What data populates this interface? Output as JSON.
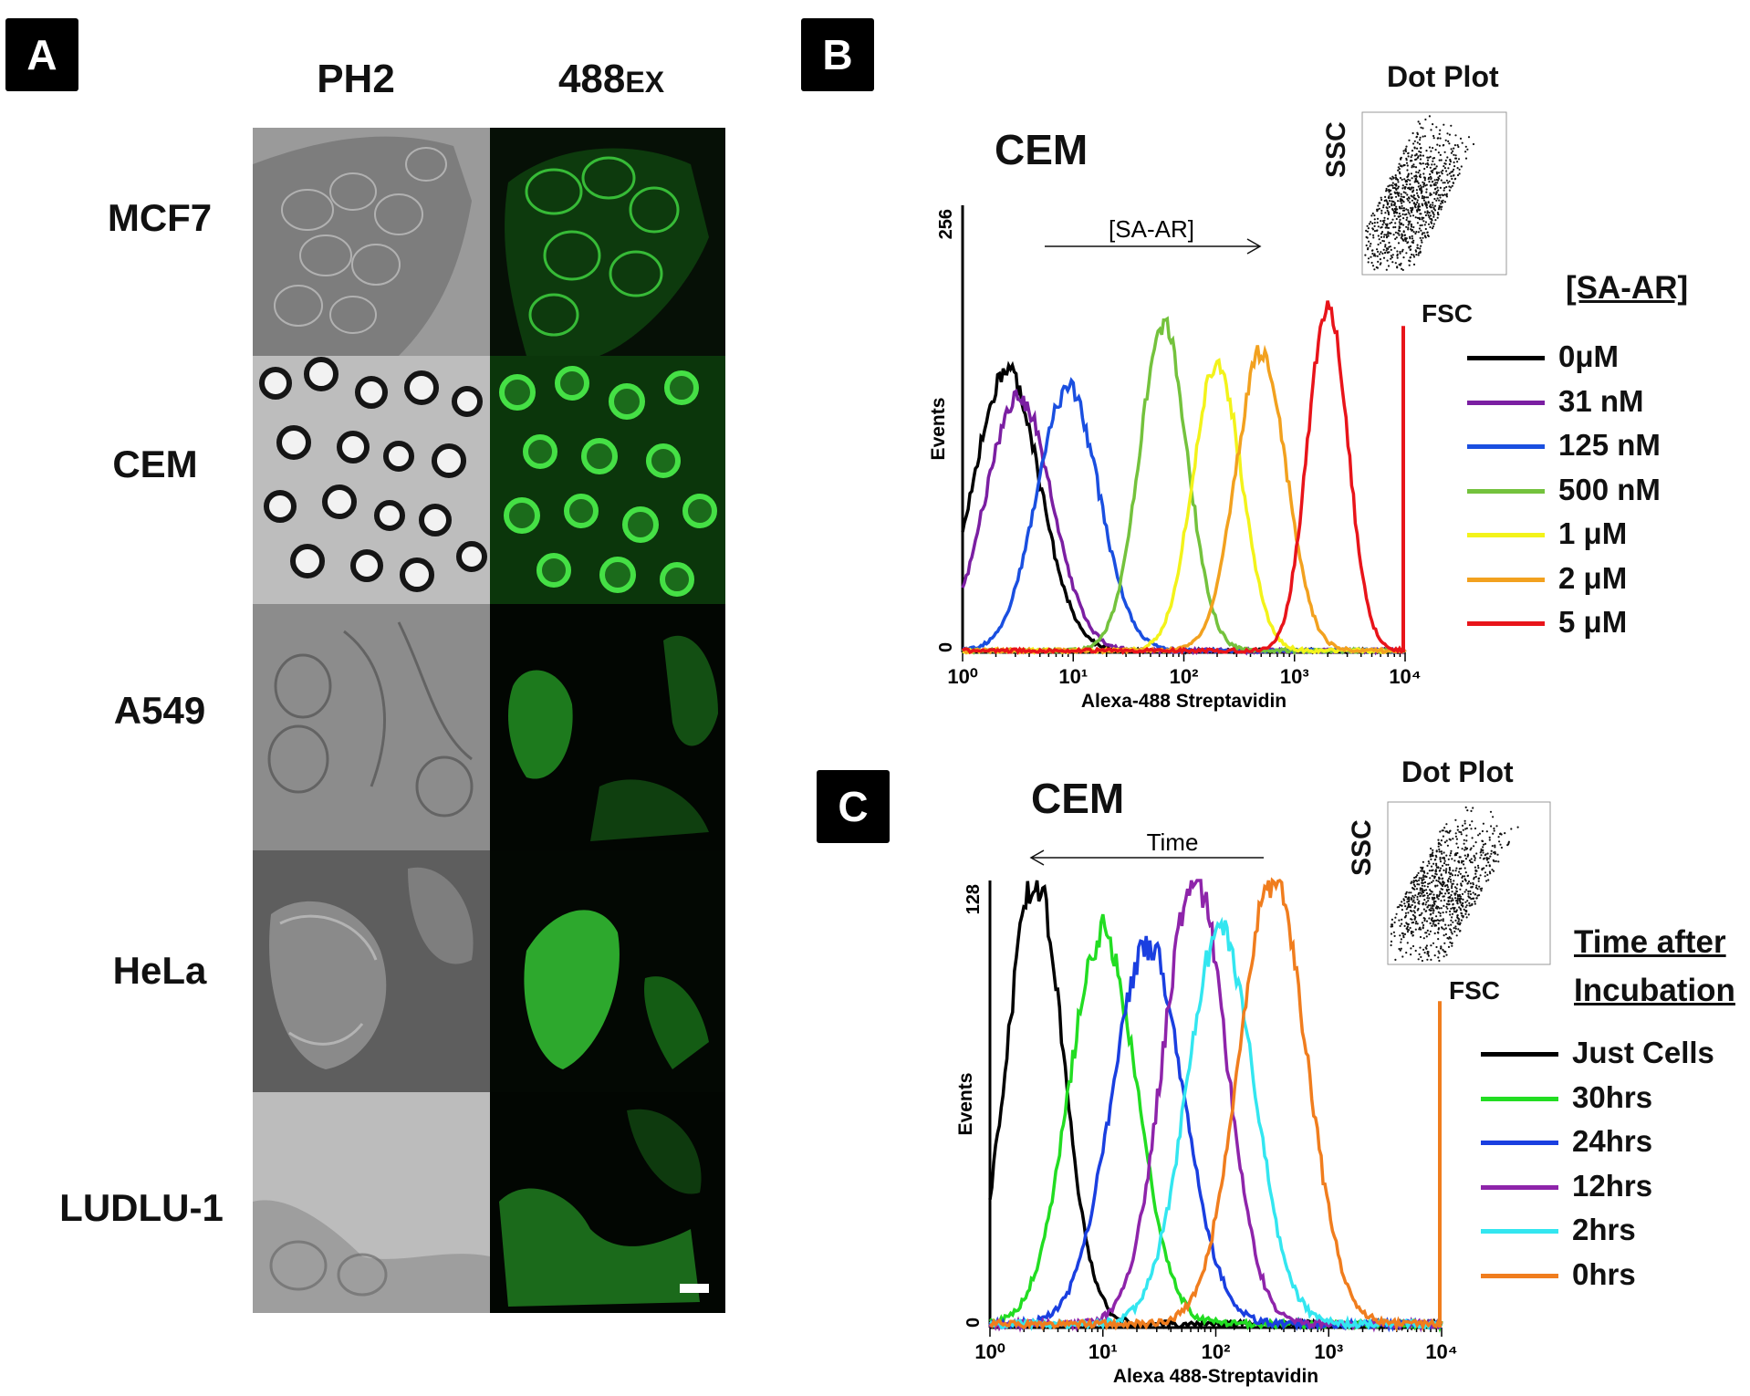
{
  "panelA": {
    "label": "A",
    "columns": [
      "PH2",
      "488",
      "EX"
    ],
    "rows": [
      "MCF7",
      "CEM",
      "A549",
      "HeLa",
      "LUDLU-1"
    ]
  },
  "panelB": {
    "label": "B",
    "title": "CEM",
    "arrow_label": "[SA-AR]",
    "dotplot": {
      "title": "Dot Plot",
      "ylabel": "SSC",
      "xlabel": "FSC"
    },
    "legend_title": "[SA-AR]",
    "legend": [
      {
        "label": "0μM",
        "color": "#000000"
      },
      {
        "label": "31 nM",
        "color": "#7b1fa2"
      },
      {
        "label": "125 nM",
        "color": "#1a4fe0"
      },
      {
        "label": "500 nM",
        "color": "#74c23d"
      },
      {
        "label": "1 μM",
        "color": "#f3f31a"
      },
      {
        "label": "2 μM",
        "color": "#f2a11f"
      },
      {
        "label": "5 μM",
        "color": "#e8141a"
      }
    ],
    "ylabel": "Events",
    "xlabel": "Alexa-488 Streptavidin",
    "y_max_label": "256",
    "y_zero_label": "0",
    "xticks": [
      "10⁰",
      "10¹",
      "10²",
      "10³",
      "10⁴"
    ]
  },
  "panelC": {
    "label": "C",
    "title": "CEM",
    "arrow_label": "Time",
    "dotplot": {
      "title": "Dot Plot",
      "ylabel": "SSC",
      "xlabel": "FSC"
    },
    "legend_title_line1": "Time after",
    "legend_title_line2": "Incubation",
    "legend": [
      {
        "label": "Just Cells",
        "color": "#000000"
      },
      {
        "label": "30hrs",
        "color": "#22dd22"
      },
      {
        "label": "24hrs",
        "color": "#1a3fe0"
      },
      {
        "label": "12hrs",
        "color": "#8e24aa"
      },
      {
        "label": "2hrs",
        "color": "#33e6f0"
      },
      {
        "label": "0hrs",
        "color": "#f07d1e"
      }
    ],
    "ylabel": "Events",
    "xlabel": "Alexa 488-Streptavidin",
    "y_max_label": "128",
    "y_zero_label": "0",
    "xticks": [
      "10⁰",
      "10¹",
      "10²",
      "10³",
      "10⁴"
    ]
  },
  "chart_data": [
    {
      "type": "line",
      "title": "CEM",
      "xlabel": "Alexa-488 Streptavidin",
      "ylabel": "Events",
      "x_scale": "log",
      "xlim": [
        1,
        10000
      ],
      "ylim": [
        0,
        256
      ],
      "series": [
        {
          "name": "0μM",
          "color": "#000000",
          "peak_x": 2.5,
          "peak_y": 160,
          "width": 0.3
        },
        {
          "name": "31 nM",
          "color": "#7b1fa2",
          "peak_x": 3.2,
          "peak_y": 145,
          "width": 0.3
        },
        {
          "name": "125 nM",
          "color": "#1a4fe0",
          "peak_x": 9,
          "peak_y": 150,
          "width": 0.28
        },
        {
          "name": "500 nM",
          "color": "#74c23d",
          "peak_x": 65,
          "peak_y": 185,
          "width": 0.22
        },
        {
          "name": "1 μM",
          "color": "#f3f31a",
          "peak_x": 200,
          "peak_y": 165,
          "width": 0.22
        },
        {
          "name": "2 μM",
          "color": "#f2a11f",
          "peak_x": 500,
          "peak_y": 170,
          "width": 0.23
        },
        {
          "name": "5 μM",
          "color": "#e8141a",
          "peak_x": 2000,
          "peak_y": 200,
          "width": 0.18
        }
      ]
    },
    {
      "type": "line",
      "title": "CEM",
      "xlabel": "Alexa 488-Streptavidin",
      "ylabel": "Events",
      "x_scale": "log",
      "xlim": [
        1,
        10000
      ],
      "ylim": [
        0,
        128
      ],
      "series": [
        {
          "name": "Just Cells",
          "color": "#000000",
          "peak_x": 2.5,
          "peak_y": 128,
          "width": 0.25
        },
        {
          "name": "30hrs",
          "color": "#22dd22",
          "peak_x": 10,
          "peak_y": 112,
          "width": 0.3
        },
        {
          "name": "24hrs",
          "color": "#1a3fe0",
          "peak_x": 25,
          "peak_y": 108,
          "width": 0.32
        },
        {
          "name": "12hrs",
          "color": "#8e24aa",
          "peak_x": 65,
          "peak_y": 128,
          "width": 0.28
        },
        {
          "name": "2hrs",
          "color": "#33e6f0",
          "peak_x": 110,
          "peak_y": 113,
          "width": 0.3
        },
        {
          "name": "0hrs",
          "color": "#f07d1e",
          "peak_x": 320,
          "peak_y": 128,
          "width": 0.3
        }
      ]
    }
  ]
}
